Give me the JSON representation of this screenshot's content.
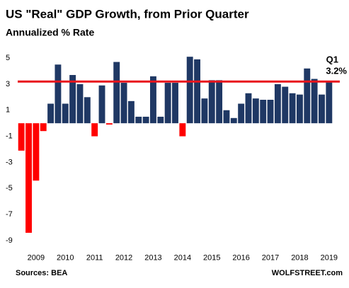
{
  "chart_data": {
    "type": "bar",
    "title": "US \"Real\" GDP Growth, from Prior Quarter",
    "subtitle": "Annualized % Rate",
    "source": "Sources: BEA",
    "credit": "WOLFSTREET.com",
    "categories": [
      null,
      null,
      "2009",
      null,
      null,
      null,
      "2010",
      null,
      null,
      null,
      "2011",
      null,
      null,
      null,
      "2012",
      null,
      null,
      null,
      "2013",
      null,
      null,
      null,
      "2014",
      null,
      null,
      null,
      "2015",
      null,
      null,
      null,
      "2016",
      null,
      null,
      null,
      "2017",
      null,
      null,
      null,
      "2018",
      null,
      null,
      null,
      "2019"
    ],
    "values": [
      -2.1,
      -8.4,
      -4.4,
      -0.6,
      1.5,
      4.5,
      1.5,
      3.7,
      3.0,
      2.0,
      -1.0,
      2.9,
      -0.1,
      4.7,
      3.1,
      1.7,
      0.5,
      0.5,
      3.6,
      0.5,
      3.1,
      3.1,
      -1.0,
      5.1,
      4.9,
      1.9,
      3.3,
      3.3,
      1.0,
      0.4,
      1.5,
      2.3,
      1.9,
      1.8,
      1.8,
      3.0,
      2.8,
      2.3,
      2.2,
      4.2,
      3.4,
      2.2,
      3.2
    ],
    "color": "#1f3864",
    "negative_color": "#ff0000",
    "ylim": [
      -9.9,
      6
    ],
    "yticks": [
      5,
      3,
      1,
      -1,
      -3,
      -5,
      -7,
      -9
    ],
    "grid": false,
    "reference_line": {
      "value": 3.2,
      "name": "Q1",
      "label": "3.2%",
      "color": "#e8141c"
    }
  }
}
